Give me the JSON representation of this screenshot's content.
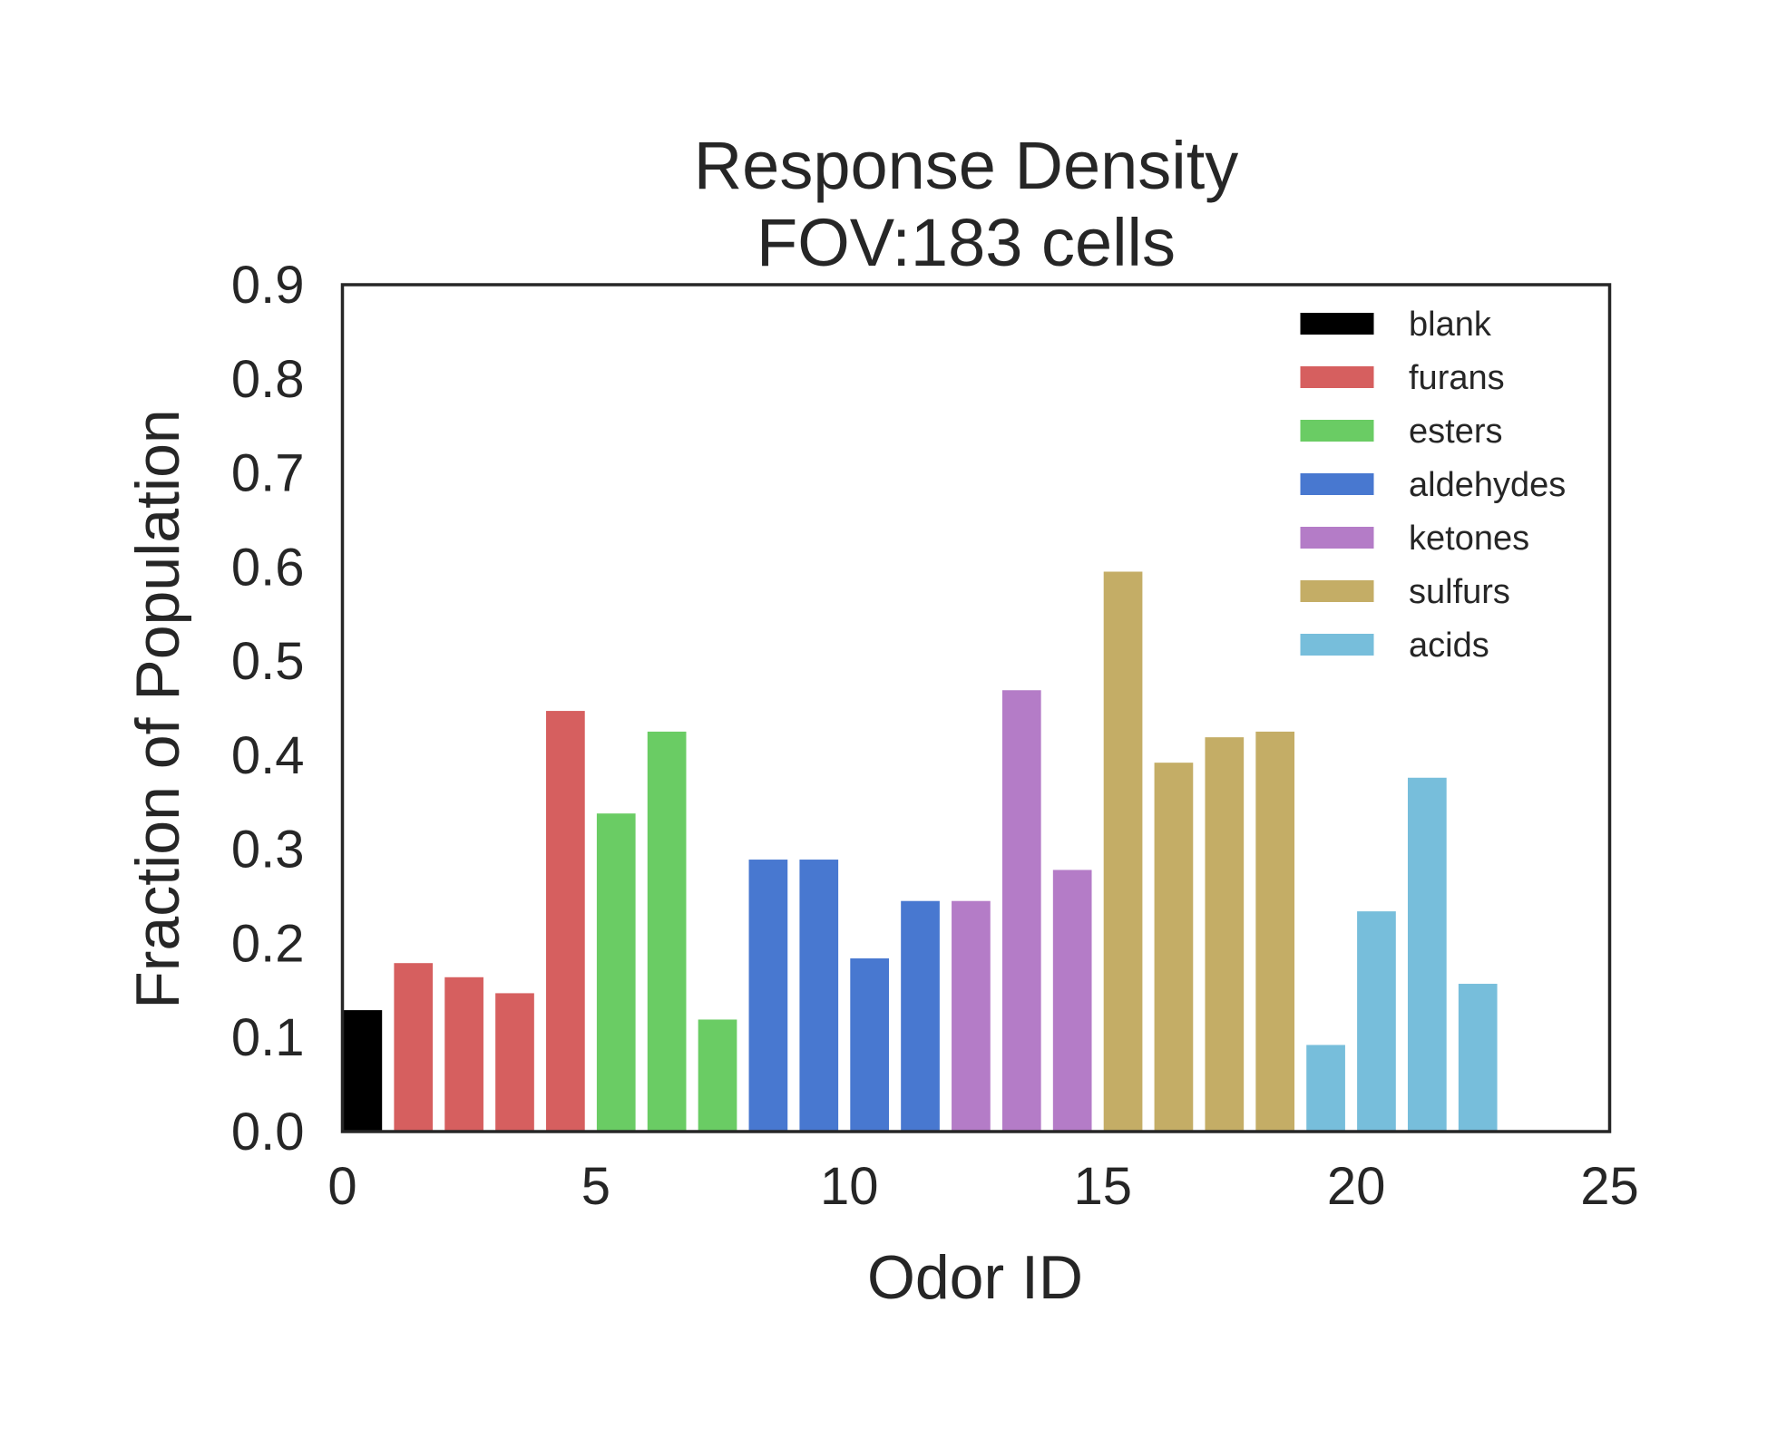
{
  "chart_data": {
    "type": "bar",
    "title": [
      "Response Density",
      "FOV:183 cells"
    ],
    "xlabel": "Odor ID",
    "ylabel": "Fraction of Population",
    "xlim": [
      0,
      25
    ],
    "ylim": [
      0,
      0.9
    ],
    "xticks": [
      "0",
      "5",
      "10",
      "15",
      "20",
      "25"
    ],
    "yticks": [
      "0.0",
      "0.1",
      "0.2",
      "0.3",
      "0.4",
      "0.5",
      "0.6",
      "0.7",
      "0.8",
      "0.9"
    ],
    "grid": false,
    "bar_width": 0.8,
    "legend_position": "top-right",
    "series": [
      {
        "name": "blank",
        "color": "#000000",
        "x": [
          0
        ],
        "values": [
          0.13
        ]
      },
      {
        "name": "furans",
        "color": "#d65f5f",
        "x": [
          1,
          2,
          3,
          4
        ],
        "values": [
          0.18,
          0.165,
          0.148,
          0.448
        ]
      },
      {
        "name": "esters",
        "color": "#6acc64",
        "x": [
          5,
          6,
          7
        ],
        "values": [
          0.339,
          0.426,
          0.12
        ]
      },
      {
        "name": "aldehydes",
        "color": "#4878d0",
        "x": [
          8,
          9,
          10,
          11
        ],
        "values": [
          0.29,
          0.29,
          0.185,
          0.246
        ]
      },
      {
        "name": "ketones",
        "color": "#b47cc7",
        "x": [
          12,
          13,
          14
        ],
        "values": [
          0.246,
          0.47,
          0.279
        ]
      },
      {
        "name": "sulfurs",
        "color": "#c4ad66",
        "x": [
          15,
          16,
          17,
          18
        ],
        "values": [
          0.596,
          0.393,
          0.42,
          0.426
        ]
      },
      {
        "name": "acids",
        "color": "#77bedb",
        "x": [
          19,
          20,
          21,
          22
        ],
        "values": [
          0.093,
          0.235,
          0.377,
          0.158
        ]
      }
    ]
  }
}
